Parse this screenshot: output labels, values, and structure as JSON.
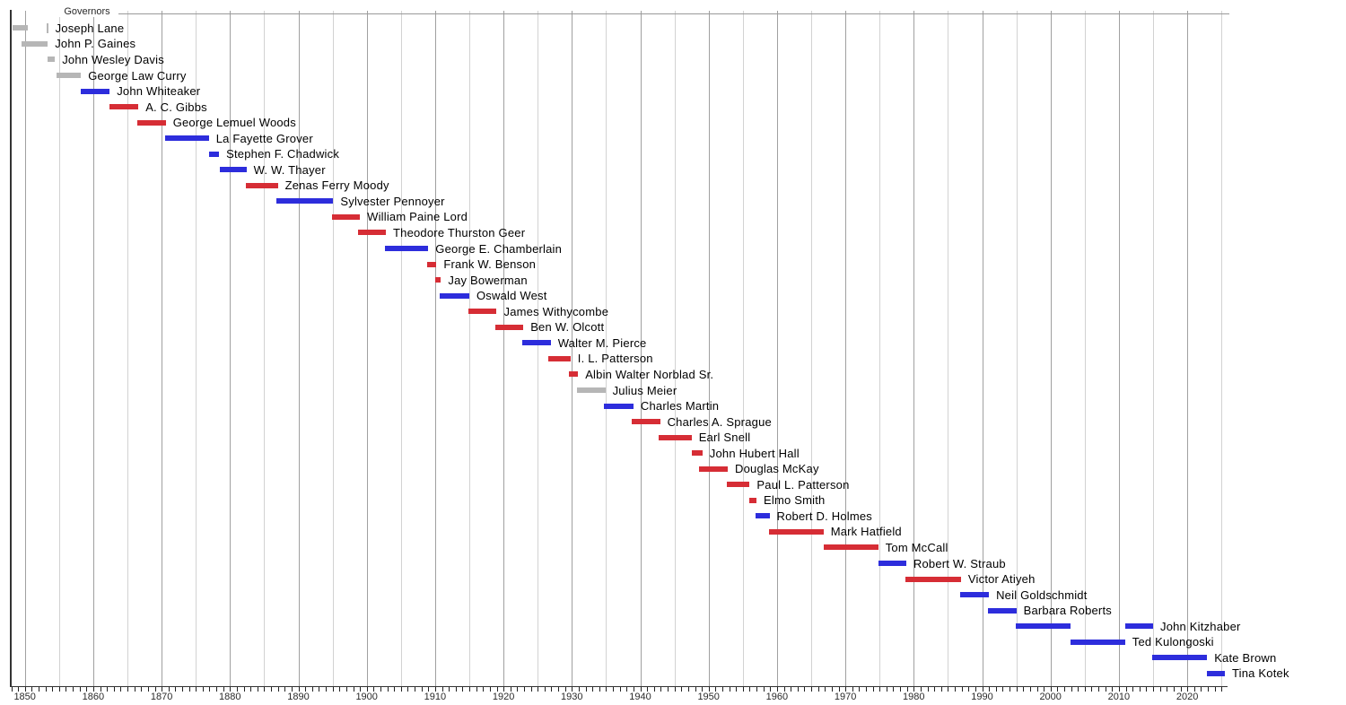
{
  "chart_data": {
    "type": "bar",
    "variant": "horizontal-timeline-gantt",
    "title": "Governors",
    "x_axis": {
      "range_start": 1848,
      "range_end": 2026,
      "decade_labels": [
        "1850",
        "1860",
        "1870",
        "1880",
        "1890",
        "1900",
        "1910",
        "1920",
        "1930",
        "1940",
        "1950",
        "1960",
        "1970",
        "1980",
        "1990",
        "2000",
        "2010",
        "2020"
      ],
      "minor_tick_interval_years": 1,
      "gridline_interval_years": 5,
      "grid_on": true
    },
    "colors": {
      "blue": "#2d2ddc",
      "red": "#d62d35",
      "gray": "#b6b6b6",
      "grid_major": "#a0a0a0",
      "grid_minor": "#d2d2d2",
      "axis": "#333333",
      "top_rule": "#999999"
    },
    "rows": [
      {
        "label": "Joseph Lane",
        "color": "gray",
        "terms": [
          [
            1848.2,
            1850.4
          ],
          [
            1853.15,
            1853.4
          ]
        ]
      },
      {
        "label": "John P. Gaines",
        "color": "gray",
        "terms": [
          [
            1849.5,
            1853.35
          ]
        ]
      },
      {
        "label": "John Wesley Davis",
        "color": "gray",
        "terms": [
          [
            1853.35,
            1854.4
          ]
        ]
      },
      {
        "label": "George Law Curry",
        "color": "gray",
        "terms": [
          [
            1854.65,
            1858.2
          ]
        ]
      },
      {
        "label": "John Whiteaker",
        "color": "blue",
        "terms": [
          [
            1858.2,
            1862.4
          ]
        ]
      },
      {
        "label": "A. C. Gibbs",
        "color": "red",
        "terms": [
          [
            1862.4,
            1866.6
          ]
        ]
      },
      {
        "label": "George Lemuel Woods",
        "color": "red",
        "terms": [
          [
            1866.5,
            1870.6
          ]
        ]
      },
      {
        "label": "La Fayette Grover",
        "color": "blue",
        "terms": [
          [
            1870.5,
            1876.9
          ]
        ]
      },
      {
        "label": "Stephen F. Chadwick",
        "color": "blue",
        "terms": [
          [
            1876.9,
            1878.4
          ]
        ]
      },
      {
        "label": "W. W. Thayer",
        "color": "blue",
        "terms": [
          [
            1878.5,
            1882.4
          ]
        ]
      },
      {
        "label": "Zenas Ferry Moody",
        "color": "red",
        "terms": [
          [
            1882.3,
            1887.0
          ]
        ]
      },
      {
        "label": "Sylvester Pennoyer",
        "color": "blue",
        "terms": [
          [
            1886.8,
            1895.1
          ]
        ]
      },
      {
        "label": "William Paine Lord",
        "color": "red",
        "terms": [
          [
            1894.9,
            1899.0
          ]
        ]
      },
      {
        "label": "Theodore Thurston Geer",
        "color": "red",
        "terms": [
          [
            1898.7,
            1902.8
          ]
        ]
      },
      {
        "label": "George E. Chamberlain",
        "color": "blue",
        "terms": [
          [
            1902.6,
            1909.0
          ]
        ]
      },
      {
        "label": "Frank W. Benson",
        "color": "red",
        "terms": [
          [
            1908.8,
            1910.2
          ]
        ]
      },
      {
        "label": "Jay Bowerman",
        "color": "red",
        "terms": [
          [
            1910.05,
            1910.85
          ]
        ]
      },
      {
        "label": "Oswald West",
        "color": "blue",
        "terms": [
          [
            1910.7,
            1915.0
          ]
        ]
      },
      {
        "label": "James Withycombe",
        "color": "red",
        "terms": [
          [
            1914.9,
            1919.0
          ]
        ]
      },
      {
        "label": "Ben W. Olcott",
        "color": "red",
        "terms": [
          [
            1918.8,
            1922.9
          ]
        ]
      },
      {
        "label": "Walter M. Pierce",
        "color": "blue",
        "terms": [
          [
            1922.7,
            1926.9
          ]
        ]
      },
      {
        "label": "I. L. Patterson",
        "color": "red",
        "terms": [
          [
            1926.5,
            1929.8
          ]
        ]
      },
      {
        "label": "Albin Walter Norblad Sr.",
        "color": "red",
        "terms": [
          [
            1929.5,
            1930.9
          ]
        ]
      },
      {
        "label": "Julius Meier",
        "color": "gray",
        "terms": [
          [
            1930.8,
            1934.9
          ]
        ]
      },
      {
        "label": "Charles Martin",
        "color": "blue",
        "terms": [
          [
            1934.7,
            1939.0
          ]
        ]
      },
      {
        "label": "Charles A. Sprague",
        "color": "red",
        "terms": [
          [
            1938.7,
            1942.9
          ]
        ]
      },
      {
        "label": "Earl Snell",
        "color": "red",
        "terms": [
          [
            1942.7,
            1947.5
          ]
        ]
      },
      {
        "label": "John Hubert Hall",
        "color": "red",
        "terms": [
          [
            1947.5,
            1949.1
          ]
        ]
      },
      {
        "label": "Douglas McKay",
        "color": "red",
        "terms": [
          [
            1948.6,
            1952.8
          ]
        ]
      },
      {
        "label": "Paul L. Patterson",
        "color": "red",
        "terms": [
          [
            1952.7,
            1956.0
          ]
        ]
      },
      {
        "label": "Elmo Smith",
        "color": "red",
        "terms": [
          [
            1955.9,
            1957.0
          ]
        ]
      },
      {
        "label": "Robert D. Holmes",
        "color": "blue",
        "terms": [
          [
            1956.8,
            1958.9
          ]
        ]
      },
      {
        "label": "Mark Hatfield",
        "color": "red",
        "terms": [
          [
            1958.8,
            1966.8
          ]
        ]
      },
      {
        "label": "Tom McCall",
        "color": "red",
        "terms": [
          [
            1966.8,
            1974.8
          ]
        ]
      },
      {
        "label": "Robert W. Straub",
        "color": "blue",
        "terms": [
          [
            1974.8,
            1978.9
          ]
        ]
      },
      {
        "label": "Victor Atiyeh",
        "color": "red",
        "terms": [
          [
            1978.8,
            1986.9
          ]
        ]
      },
      {
        "label": "Neil Goldschmidt",
        "color": "blue",
        "terms": [
          [
            1986.8,
            1991.0
          ]
        ]
      },
      {
        "label": "Barbara Roberts",
        "color": "blue",
        "terms": [
          [
            1990.8,
            1995.0
          ]
        ]
      },
      {
        "label": "John Kitzhaber",
        "color": "blue",
        "terms": [
          [
            1994.9,
            2003.0
          ],
          [
            2010.9,
            2015.0
          ]
        ]
      },
      {
        "label": "Ted Kulongoski",
        "color": "blue",
        "terms": [
          [
            2002.9,
            2010.9
          ]
        ]
      },
      {
        "label": "Kate Brown",
        "color": "blue",
        "terms": [
          [
            2014.8,
            2022.9
          ]
        ]
      },
      {
        "label": "Tina Kotek",
        "color": "blue",
        "terms": [
          [
            2022.9,
            2025.5
          ]
        ]
      }
    ]
  }
}
